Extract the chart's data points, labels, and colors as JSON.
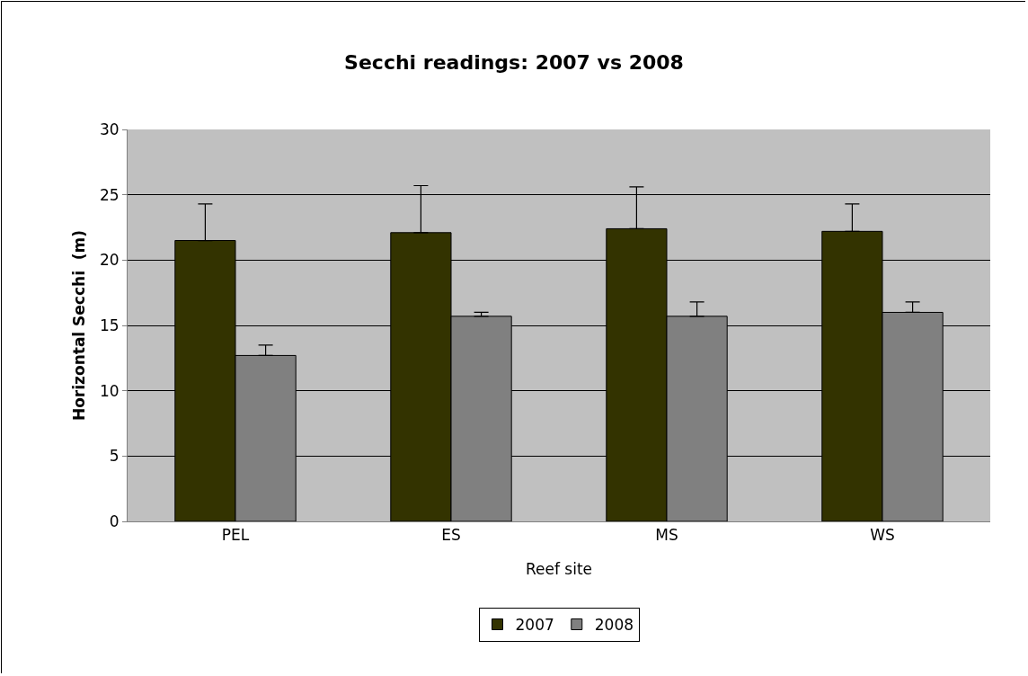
{
  "chart_data": {
    "type": "bar",
    "title": "Secchi readings: 2007 vs 2008",
    "xlabel": "Reef site",
    "ylabel": "Horizontal Secchi  (m)",
    "categories": [
      "PEL",
      "ES",
      "MS",
      "WS"
    ],
    "series": [
      {
        "name": "2007",
        "color": "#333300",
        "values": [
          21.5,
          22.1,
          22.4,
          22.2
        ],
        "errors": [
          [
            21.5,
            24.3
          ],
          [
            22.1,
            25.7
          ],
          [
            22.4,
            25.6
          ],
          [
            22.2,
            24.3
          ]
        ]
      },
      {
        "name": "2008",
        "color": "#808080",
        "values": [
          12.7,
          15.7,
          15.7,
          16.0
        ],
        "errors": [
          [
            12.7,
            13.5
          ],
          [
            15.7,
            16.0
          ],
          [
            15.7,
            16.8
          ],
          [
            16.0,
            16.8
          ]
        ]
      }
    ],
    "ylim": [
      0,
      30
    ],
    "yticks": [
      0,
      5,
      10,
      15,
      20,
      25,
      30
    ],
    "grid": "y",
    "legend": "bottom"
  }
}
